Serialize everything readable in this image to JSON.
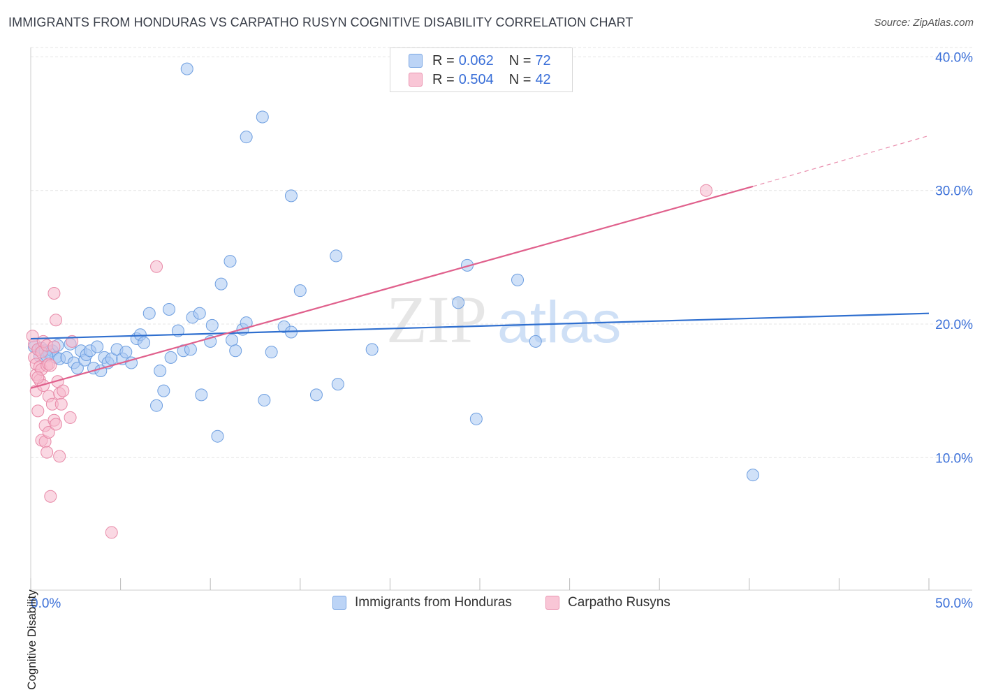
{
  "title": "IMMIGRANTS FROM HONDURAS VS CARPATHO RUSYN COGNITIVE DISABILITY CORRELATION CHART",
  "source": "Source: ZipAtlas.com",
  "watermark": {
    "zip": "ZIP",
    "atlas": "atlas"
  },
  "legend": {
    "series1": {
      "r_label": "R =",
      "r_value": "0.062",
      "n_label": "N =",
      "n_value": "72"
    },
    "series2": {
      "r_label": "R =",
      "r_value": "0.504",
      "n_label": "N =",
      "n_value": "42"
    }
  },
  "colors": {
    "blue_fill": "#a9c8f2",
    "blue_stroke": "#6d9ee0",
    "blue_line": "#2f6fcf",
    "pink_fill": "#f6b8cc",
    "pink_stroke": "#e88aa8",
    "pink_line": "#e0608c",
    "tick_label": "#3a6fd8",
    "grid": "#e4e4e4"
  },
  "chart_data": {
    "type": "scatter",
    "title": "IMMIGRANTS FROM HONDURAS VS CARPATHO RUSYN COGNITIVE DISABILITY CORRELATION CHART",
    "xlabel": "",
    "ylabel": "Cognitive Disability",
    "xlim": [
      0,
      50
    ],
    "ylim": [
      0,
      42
    ],
    "x_tick_labels": [
      "0.0%",
      "50.0%"
    ],
    "y_ticks": [
      10,
      20,
      30,
      40
    ],
    "y_tick_labels": [
      "10.0%",
      "20.0%",
      "30.0%",
      "40.0%"
    ],
    "grid": true,
    "legend_position": "bottom",
    "series": [
      {
        "name": "Immigrants from Honduras",
        "color": "#a9c8f2",
        "trend": {
          "x0": 0,
          "y0": 18.9,
          "x1": 50,
          "y1": 20.8
        },
        "points": [
          [
            0.2,
            18.3
          ],
          [
            0.4,
            18.1
          ],
          [
            0.5,
            17.6
          ],
          [
            0.6,
            18.2
          ],
          [
            0.8,
            18.0
          ],
          [
            1.0,
            17.9
          ],
          [
            1.2,
            18.0
          ],
          [
            1.4,
            17.5
          ],
          [
            1.6,
            17.4
          ],
          [
            2.0,
            17.5
          ],
          [
            2.2,
            18.5
          ],
          [
            2.4,
            17.1
          ],
          [
            2.6,
            16.7
          ],
          [
            2.8,
            18.0
          ],
          [
            3.0,
            17.3
          ],
          [
            3.1,
            17.7
          ],
          [
            3.3,
            18.0
          ],
          [
            3.5,
            16.7
          ],
          [
            3.7,
            18.3
          ],
          [
            3.9,
            16.5
          ],
          [
            4.1,
            17.5
          ],
          [
            4.3,
            17.1
          ],
          [
            4.5,
            17.4
          ],
          [
            4.8,
            18.1
          ],
          [
            5.1,
            17.4
          ],
          [
            5.3,
            17.9
          ],
          [
            5.6,
            17.1
          ],
          [
            5.9,
            18.9
          ],
          [
            6.1,
            19.2
          ],
          [
            6.3,
            18.6
          ],
          [
            6.6,
            20.8
          ],
          [
            7.0,
            13.9
          ],
          [
            7.2,
            16.5
          ],
          [
            7.4,
            15.0
          ],
          [
            7.7,
            21.1
          ],
          [
            7.8,
            17.5
          ],
          [
            8.2,
            19.5
          ],
          [
            8.5,
            18.0
          ],
          [
            8.7,
            39.1
          ],
          [
            8.9,
            18.1
          ],
          [
            9.0,
            20.5
          ],
          [
            9.4,
            20.8
          ],
          [
            9.5,
            14.7
          ],
          [
            10.0,
            18.7
          ],
          [
            10.1,
            19.9
          ],
          [
            10.4,
            11.6
          ],
          [
            10.6,
            23.0
          ],
          [
            11.1,
            24.7
          ],
          [
            11.2,
            18.8
          ],
          [
            11.4,
            18.0
          ],
          [
            11.8,
            19.6
          ],
          [
            12.0,
            20.1
          ],
          [
            12.0,
            34.0
          ],
          [
            12.9,
            35.5
          ],
          [
            13.0,
            14.3
          ],
          [
            13.4,
            17.9
          ],
          [
            14.1,
            19.8
          ],
          [
            14.5,
            19.4
          ],
          [
            14.5,
            29.6
          ],
          [
            15.0,
            22.5
          ],
          [
            15.9,
            14.7
          ],
          [
            17.0,
            25.1
          ],
          [
            17.1,
            15.5
          ],
          [
            19.0,
            18.1
          ],
          [
            23.8,
            21.6
          ],
          [
            24.3,
            24.4
          ],
          [
            24.8,
            12.9
          ],
          [
            27.1,
            23.3
          ],
          [
            28.1,
            18.7
          ],
          [
            40.2,
            8.7
          ],
          [
            0.9,
            17.6
          ],
          [
            1.5,
            18.4
          ]
        ]
      },
      {
        "name": "Carpatho Rusyns",
        "color": "#f6b8cc",
        "trend": {
          "x0": 0,
          "y0": 15.2,
          "x1": 40.2,
          "y1": 30.3,
          "dash_x1": 50,
          "dash_y1": 34.1
        },
        "points": [
          [
            0.1,
            19.1
          ],
          [
            0.2,
            18.5
          ],
          [
            0.2,
            17.5
          ],
          [
            0.3,
            17.0
          ],
          [
            0.3,
            16.2
          ],
          [
            0.3,
            15.0
          ],
          [
            0.4,
            13.5
          ],
          [
            0.4,
            18.1
          ],
          [
            0.5,
            16.8
          ],
          [
            0.5,
            15.8
          ],
          [
            0.6,
            16.6
          ],
          [
            0.6,
            11.3
          ],
          [
            0.6,
            17.9
          ],
          [
            0.7,
            18.7
          ],
          [
            0.7,
            15.4
          ],
          [
            0.8,
            12.4
          ],
          [
            0.8,
            11.2
          ],
          [
            0.9,
            18.4
          ],
          [
            0.9,
            16.9
          ],
          [
            0.9,
            10.4
          ],
          [
            1.0,
            14.6
          ],
          [
            1.0,
            11.9
          ],
          [
            1.0,
            17.0
          ],
          [
            1.1,
            7.1
          ],
          [
            1.1,
            16.9
          ],
          [
            1.2,
            14.0
          ],
          [
            1.3,
            12.8
          ],
          [
            1.3,
            18.3
          ],
          [
            1.3,
            22.3
          ],
          [
            1.4,
            20.3
          ],
          [
            1.4,
            12.5
          ],
          [
            1.5,
            15.7
          ],
          [
            1.6,
            14.8
          ],
          [
            1.6,
            10.1
          ],
          [
            1.7,
            14.0
          ],
          [
            1.8,
            15.0
          ],
          [
            2.2,
            13.0
          ],
          [
            2.3,
            18.7
          ],
          [
            4.5,
            4.4
          ],
          [
            7.0,
            24.3
          ],
          [
            37.6,
            30.0
          ],
          [
            0.4,
            16.0
          ]
        ]
      }
    ]
  },
  "bottom_legend": {
    "series1": "Immigrants from Honduras",
    "series2": "Carpatho Rusyns"
  }
}
